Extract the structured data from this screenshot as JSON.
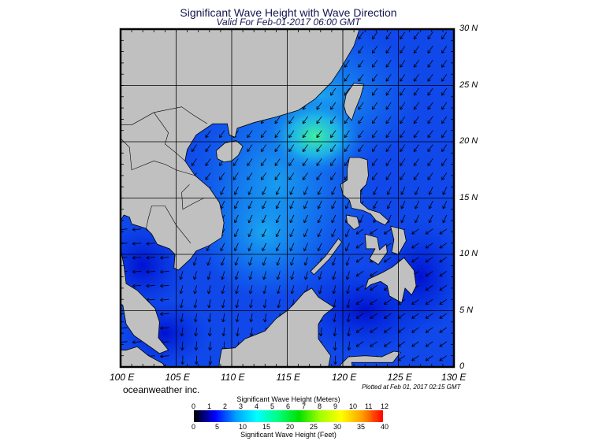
{
  "title": "Significant Wave Height with Wave Direction",
  "subtitle": "Valid For Feb-01-2017 06:00 GMT",
  "map": {
    "lon_range": [
      100,
      130
    ],
    "lat_range": [
      0,
      30
    ],
    "lon_labels": [
      "100 E",
      "105 E",
      "110 E",
      "115 E",
      "120 E",
      "125 E",
      "130 E"
    ],
    "lat_labels": [
      "30 N",
      "25 N",
      "20 N",
      "15 N",
      "10 N",
      "5 N",
      "0"
    ],
    "grid_interval_deg": 5,
    "land_color": "#c0c0c0",
    "arrow_color": "#000000"
  },
  "credit": "oceanweather inc.",
  "plotted_at": "Plotted at Feb 01, 2017 02:15 GMT",
  "colorbar": {
    "meters_title": "Significant Wave Height (Meters)",
    "meters_labels": [
      "0",
      "1",
      "2",
      "3",
      "4",
      "5",
      "6",
      "7",
      "8",
      "9",
      "10",
      "11",
      "12"
    ],
    "feet_labels": [
      "0",
      "5",
      "10",
      "15",
      "20",
      "25",
      "30",
      "35",
      "40"
    ],
    "feet_title": "Significant Wave Height (Feet)",
    "colors": [
      "#000000",
      "#0000ff",
      "#00a0ff",
      "#00ffff",
      "#00ff80",
      "#00e000",
      "#a0ff00",
      "#ffff00",
      "#ffa000",
      "#ff0000"
    ]
  }
}
